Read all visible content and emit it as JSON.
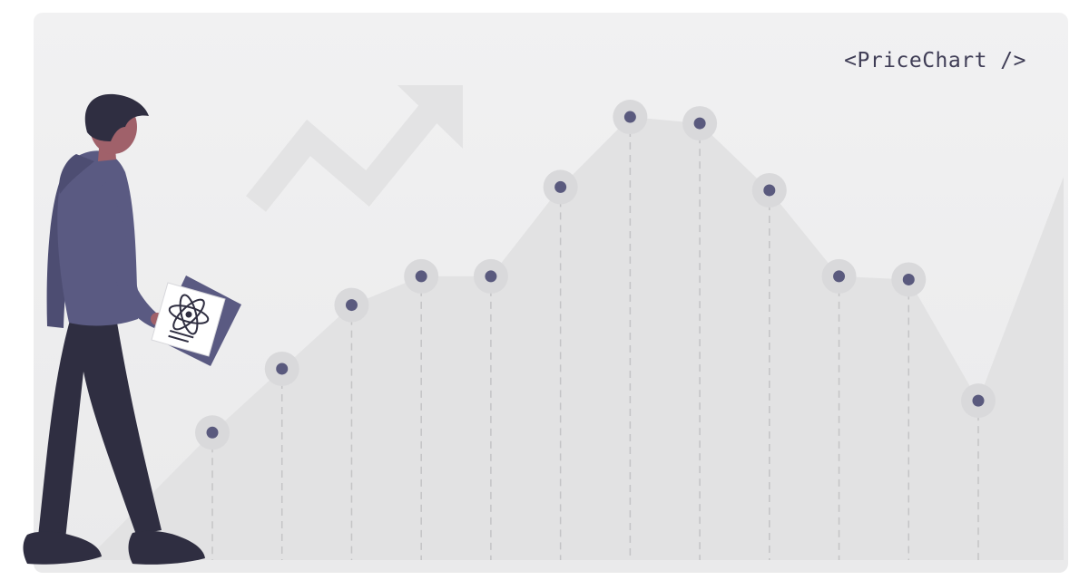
{
  "header": {
    "code_label": "<PriceChart />"
  },
  "chart_data": {
    "type": "line",
    "x": [
      1,
      2,
      3,
      4,
      5,
      6,
      7,
      8,
      9,
      10,
      11,
      12
    ],
    "values": [
      20,
      30,
      40,
      44.5,
      44.5,
      58.5,
      69.5,
      68.5,
      58,
      44.5,
      44,
      25
    ],
    "title": "",
    "xlabel": "",
    "ylabel": "",
    "ylim": [
      0,
      85
    ],
    "grid": false,
    "legend": "none",
    "marker_style": "dot-with-halo"
  },
  "colors": {
    "card_background": "#eeeeef",
    "area_fill": "#e2e2e3",
    "point_fill": "#5a5a7e",
    "point_halo": "#d9d9db",
    "drop_line": "#c4c4c6",
    "hero_arrow": "#e3e3e4",
    "label_text": "#3f3d56",
    "hoodie": "#5a5a82",
    "pants": "#2f2e41",
    "hair": "#2f2e41",
    "skin": "#a0616a"
  },
  "illustration": {
    "figure": "person-walking-icon",
    "document": "react-logo-document-icon",
    "trend_arrow": "trend-up-arrow-icon"
  }
}
